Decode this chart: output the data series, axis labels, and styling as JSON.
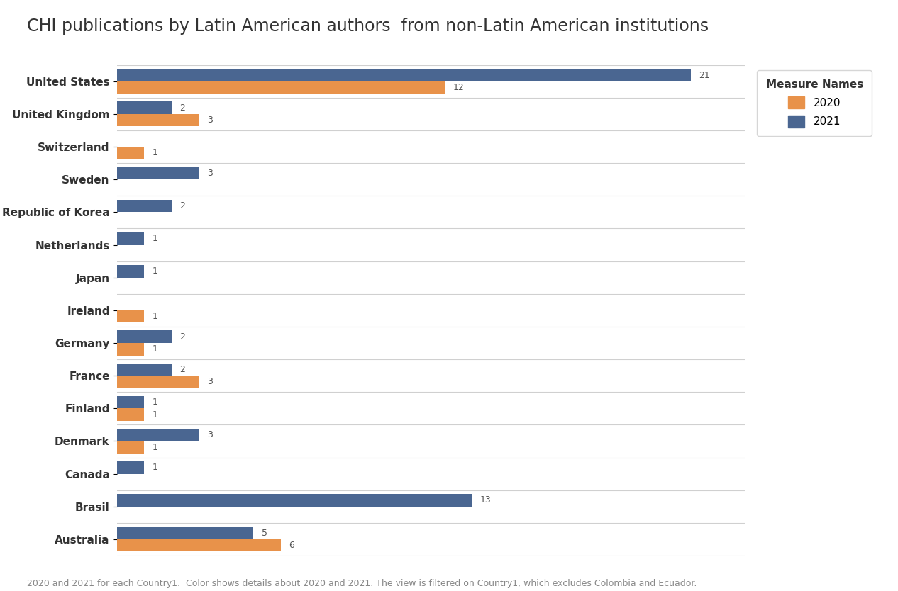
{
  "title": "CHI publications by Latin American authors  from non-Latin American institutions",
  "categories": [
    "United States",
    "United Kingdom",
    "Switzerland",
    "Sweden",
    "Republic of Korea",
    "Netherlands",
    "Japan",
    "Ireland",
    "Germany",
    "France",
    "Finland",
    "Denmark",
    "Canada",
    "Brasil",
    "Australia"
  ],
  "values_2020": [
    12,
    3,
    1,
    0,
    0,
    0,
    0,
    1,
    1,
    3,
    1,
    1,
    0,
    0,
    6
  ],
  "values_2021": [
    21,
    2,
    0,
    3,
    2,
    1,
    1,
    0,
    2,
    2,
    1,
    3,
    1,
    13,
    5
  ],
  "color_2020": "#e8924a",
  "color_2021": "#4a6691",
  "legend_title": "Measure Names",
  "legend_2020": "2020",
  "legend_2021": "2021",
  "footer": "2020 and 2021 for each Country1.  Color shows details about 2020 and 2021. The view is filtered on Country1, which excludes Colombia and Ecuador.",
  "xlim": [
    0,
    23
  ],
  "background_color": "#ffffff",
  "plot_bg_color": "#ffffff",
  "grid_color": "#e0e0e0",
  "bar_height": 0.38,
  "title_fontsize": 17,
  "axis_label_fontsize": 11,
  "footer_fontsize": 9,
  "value_label_fontsize": 9,
  "separator_color": "#d0d0d0"
}
